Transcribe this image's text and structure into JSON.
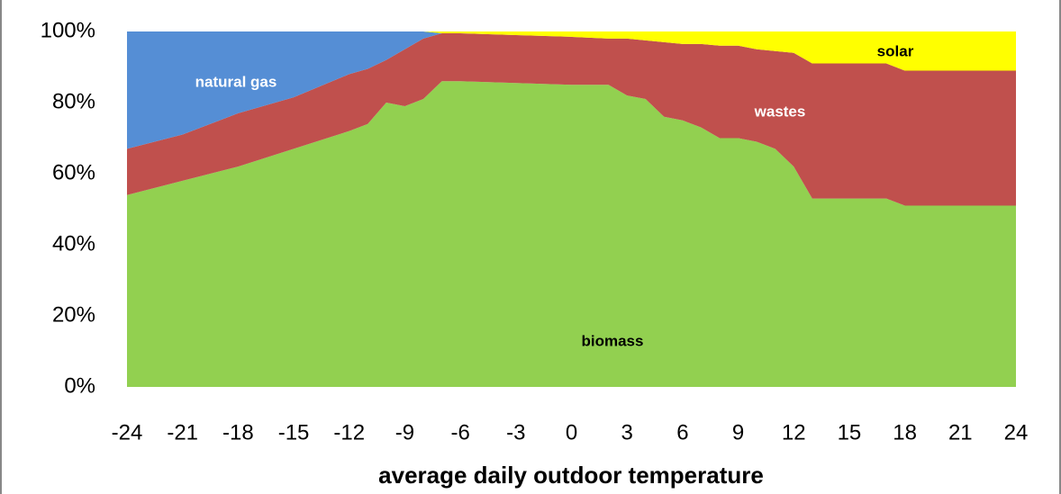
{
  "chart_data": {
    "type": "stacked_area",
    "x_label": "average daily outdoor temperature",
    "x": [
      -24,
      -21,
      -18,
      -15,
      -12,
      -11,
      -10,
      -9,
      -8,
      -7,
      -6,
      -3,
      0,
      2,
      3,
      4,
      5,
      6,
      7,
      8,
      9,
      10,
      11,
      12,
      13,
      15,
      17,
      18,
      21,
      24
    ],
    "series": [
      {
        "name": "biomass",
        "color": "#92d050",
        "values": [
          54,
          58,
          62,
          67,
          72,
          74,
          80,
          79,
          81,
          86,
          86,
          85.5,
          85,
          85,
          82,
          81,
          76,
          75,
          73,
          70,
          70,
          69,
          67,
          62,
          53,
          53,
          53,
          51,
          51,
          51
        ]
      },
      {
        "name": "wastes",
        "color": "#c0504d",
        "values": [
          13,
          13,
          15,
          14.5,
          16,
          15.5,
          12,
          16,
          17,
          13.5,
          13.5,
          13.5,
          13.5,
          13,
          16,
          16.5,
          21,
          21.5,
          23.5,
          26,
          26,
          26,
          27.5,
          32,
          38,
          38,
          38,
          38,
          38,
          38
        ]
      },
      {
        "name": "natural gas",
        "color": "#558ed5",
        "values": [
          33,
          29,
          23,
          18.5,
          12,
          10.5,
          8,
          5,
          2,
          0,
          0,
          0,
          0,
          0,
          0,
          0,
          0,
          0,
          0,
          0,
          0,
          0,
          0,
          0,
          0,
          0,
          0,
          0,
          0,
          0
        ]
      },
      {
        "name": "solar",
        "color": "#ffff00",
        "values": [
          0,
          0,
          0,
          0,
          0,
          0,
          0,
          0,
          0,
          0.5,
          0.5,
          1,
          1.5,
          2,
          2,
          2.5,
          3,
          3.5,
          3.5,
          4,
          4,
          5,
          5.5,
          6,
          9,
          9,
          9,
          11,
          11,
          11
        ]
      }
    ],
    "xlim": [
      -24,
      24
    ],
    "xticks": [
      -24,
      -21,
      -18,
      -15,
      -12,
      -9,
      -6,
      -3,
      0,
      3,
      6,
      9,
      12,
      15,
      18,
      21,
      24
    ],
    "ylim": [
      0,
      100
    ],
    "yticks": [
      {
        "value": 0,
        "label": "0%"
      },
      {
        "value": 20,
        "label": "20%"
      },
      {
        "value": 40,
        "label": "40%"
      },
      {
        "value": 60,
        "label": "60%"
      },
      {
        "value": 80,
        "label": "80%"
      },
      {
        "value": 100,
        "label": "100%"
      }
    ]
  }
}
